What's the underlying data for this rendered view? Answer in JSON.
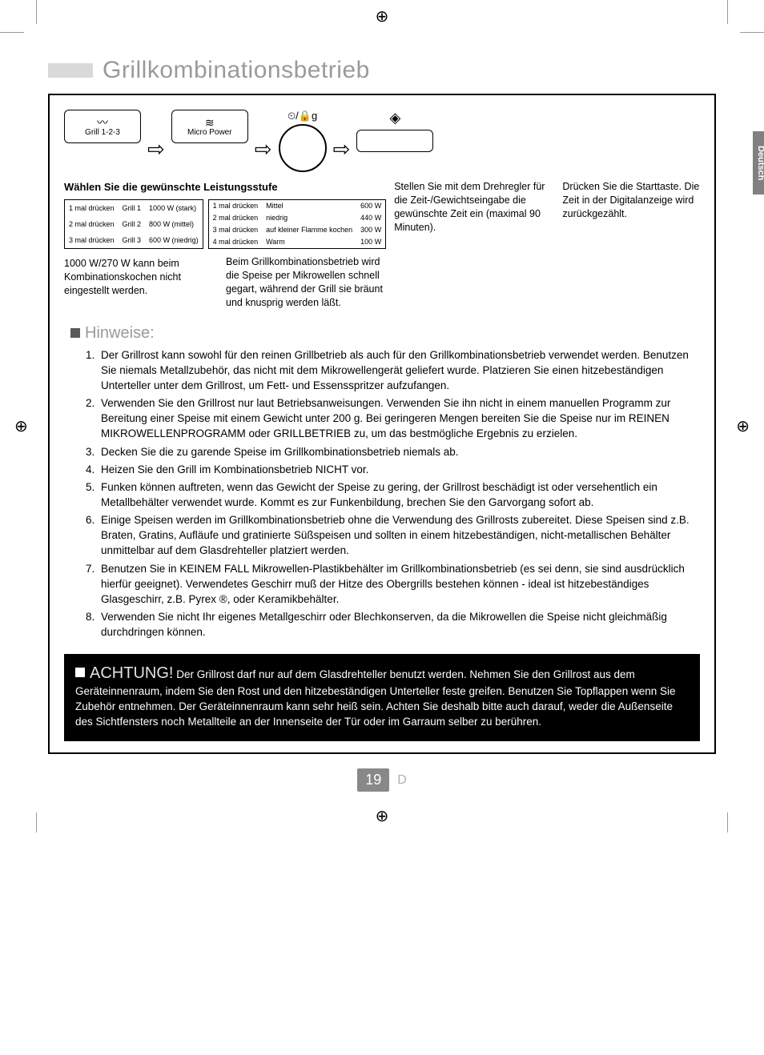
{
  "page_title": "Grillkombinationsbetrieb",
  "side_tab": "Deutsch",
  "registration_symbol": "⊕",
  "steps": {
    "grill_btn": {
      "icon": "〰",
      "label": "Grill 1-2-3"
    },
    "micro_btn": {
      "icon": "≋",
      "label": "Micro Power"
    },
    "dial_symbol": "⏲/🔒g",
    "start_symbol": "◈"
  },
  "power_heading": "Wählen Sie die gewünschte Leistungsstufe",
  "grill_table": [
    [
      "1 mal drücken",
      "Grill 1",
      "1000 W (stark)"
    ],
    [
      "2 mal drücken",
      "Grill 2",
      "800 W (mittel)"
    ],
    [
      "3 mal drücken",
      "Grill 3",
      "600 W (niedrig)"
    ]
  ],
  "micro_table": [
    [
      "1 mal drücken",
      "Mittel",
      "600 W"
    ],
    [
      "2 mal drücken",
      "niedrig",
      "440 W"
    ],
    [
      "3 mal drücken",
      "auf kleiner Flamme kochen",
      "300 W"
    ],
    [
      "4 mal drücken",
      "Warm",
      "100 W"
    ]
  ],
  "combo_note": "1000 W/270 W kann beim Kombinationskochen nicht eingestellt werden.",
  "dial_caption": "Stellen Sie mit dem Drehregler für die Zeit-/Gewichtseingabe die gewünschte Zeit ein (maximal 90 Minuten).",
  "start_caption": "Drücken Sie die Starttaste. Die Zeit in der Digitalanzeige wird zurückgezählt.",
  "combo_desc": "Beim Grillkombinationsbetrieb wird die Speise per Mikrowellen schnell gegart, während der Grill sie bräunt und knusprig werden läßt.",
  "hinweise_title": "Hinweise:",
  "hints": [
    "Der Grillrost kann sowohl für den reinen Grillbetrieb als auch für den Grillkombinationsbetrieb verwendet werden. Benutzen Sie niemals Metallzubehör, das nicht mit dem Mikrowellengerät geliefert wurde. Platzieren Sie einen hitzebeständigen Unterteller unter dem Grillrost, um Fett- und Essensspritzer aufzufangen.",
    "Verwenden Sie den Grillrost nur laut Betriebsanweisungen. Verwenden Sie ihn nicht in einem manuellen Programm zur Bereitung einer Speise mit einem Gewicht unter 200 g. Bei geringeren Mengen bereiten Sie die Speise nur im REINEN MIKROWELLENPROGRAMM oder GRILLBETRIEB zu, um das bestmögliche Ergebnis zu erzielen.",
    "Decken Sie die zu garende Speise im Grillkombinationsbetrieb niemals ab.",
    "Heizen Sie den Grill im Kombinationsbetrieb NICHT vor.",
    "Funken können auftreten, wenn das Gewicht der Speise zu gering, der Grillrost beschädigt ist oder versehentlich ein Metallbehälter verwendet wurde. Kommt es zur Funkenbildung, brechen Sie den Garvorgang sofort ab.",
    "Einige Speisen werden im Grillkombinationsbetrieb ohne die Verwendung des Grillrosts zubereitet. Diese Speisen sind z.B. Braten, Gratins, Aufläufe und gratinierte Süßspeisen und sollten in einem hitzebeständigen, nicht-metallischen Behälter unmittelbar auf dem Glasdrehteller platziert werden.",
    "Benutzen Sie in KEINEM FALL Mikrowellen-Plastikbehälter im Grillkombinationsbetrieb (es sei denn, sie sind ausdrücklich hierfür geeignet). Verwendetes Geschirr muß der Hitze des Obergrills bestehen können - ideal ist hitzebeständiges Glasgeschirr, z.B. Pyrex ®, oder Keramikbehälter.",
    "Verwenden Sie nicht Ihr eigenes Metallgeschirr oder Blechkonserven, da die Mikrowellen die Speise nicht gleichmäßig durchdringen können."
  ],
  "warning_title": "ACHTUNG!",
  "warning_body": "Der Grillrost darf nur auf dem Glasdrehteller benutzt werden. Nehmen Sie den Grillrost aus dem Geräteinnenraum, indem Sie den Rost und den hitzebeständigen Unterteller feste greifen. Benutzen Sie Topflappen wenn Sie Zubehör entnehmen. Der Geräteinnenraum kann sehr heiß sein. Achten Sie deshalb bitte auch darauf, weder die Außenseite des Sichtfensters noch Metallteile an der Innenseite der Tür oder im Garraum selber zu berühren.",
  "page_number": "19",
  "page_lang": "D"
}
